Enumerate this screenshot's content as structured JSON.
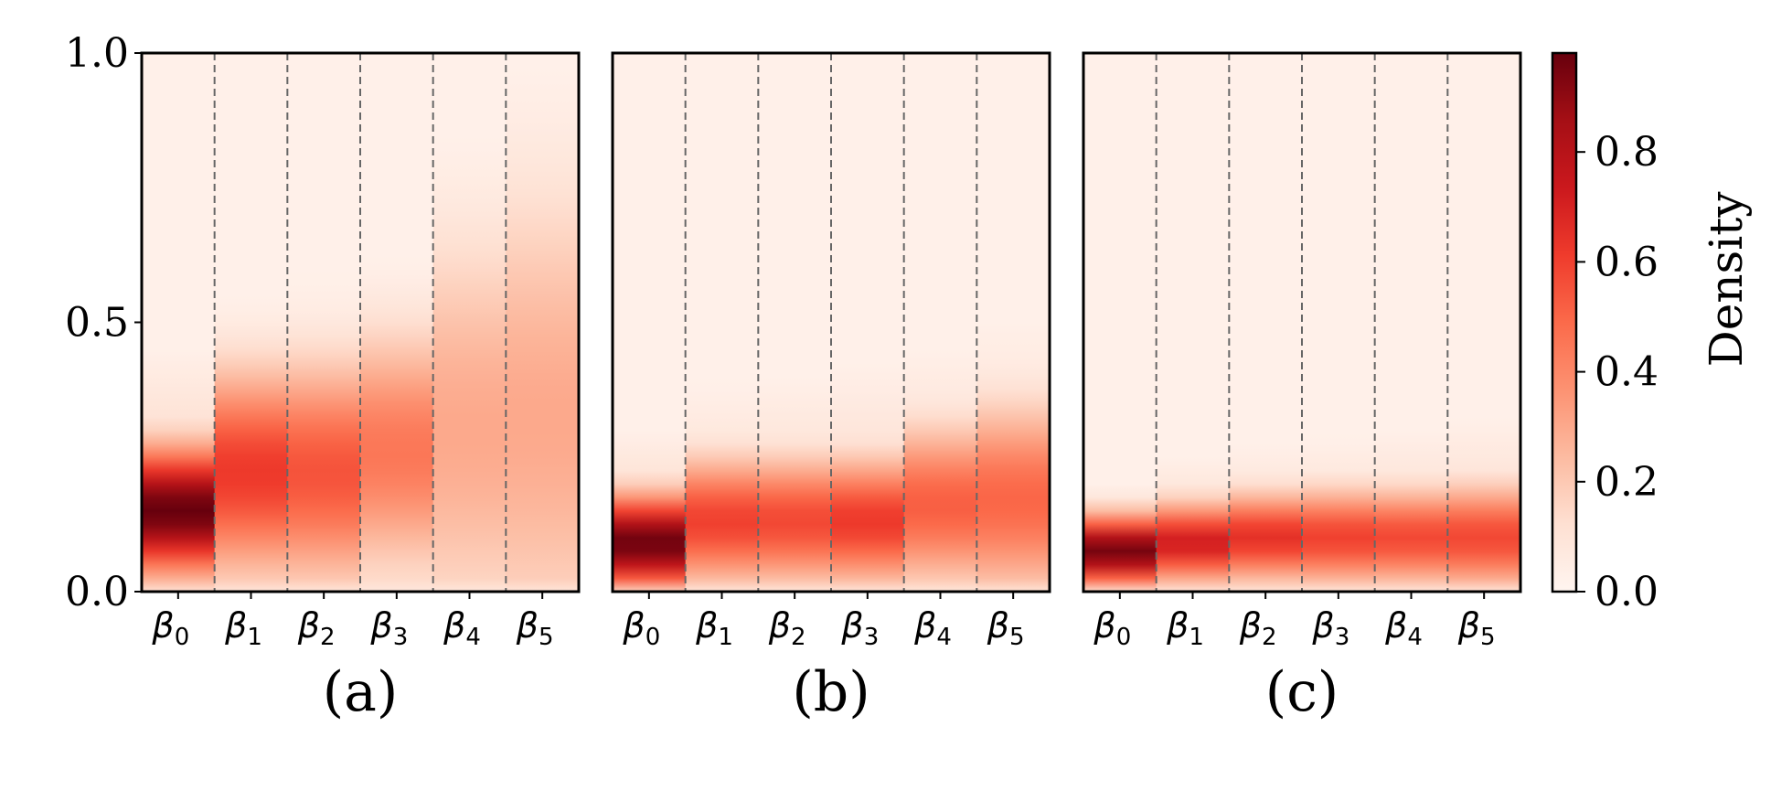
{
  "chart_data": [
    {
      "type": "heatmap",
      "panel_label": "(a)",
      "categories": [
        "β0",
        "β1",
        "β2",
        "β3",
        "β4",
        "β5"
      ],
      "category_base": "β",
      "category_subscripts": [
        "0",
        "1",
        "2",
        "3",
        "4",
        "5"
      ],
      "ylim": [
        0,
        1
      ],
      "yticks": [
        "0.0",
        "0.5",
        "1.0"
      ],
      "columns": [
        {
          "peak_y": 0.15,
          "peak_density": 0.98,
          "spread": 0.08,
          "floor_top": 0.45
        },
        {
          "peak_y": 0.22,
          "peak_density": 0.62,
          "spread": 0.13,
          "floor_top": 0.55
        },
        {
          "peak_y": 0.22,
          "peak_density": 0.55,
          "spread": 0.14,
          "floor_top": 0.58
        },
        {
          "peak_y": 0.26,
          "peak_density": 0.45,
          "spread": 0.15,
          "floor_top": 0.62
        },
        {
          "peak_y": 0.3,
          "peak_density": 0.3,
          "spread": 0.25,
          "floor_top": 0.75
        },
        {
          "peak_y": 0.32,
          "peak_density": 0.3,
          "spread": 0.3,
          "floor_top": 0.85
        }
      ]
    },
    {
      "type": "heatmap",
      "panel_label": "(b)",
      "categories": [
        "β0",
        "β1",
        "β2",
        "β3",
        "β4",
        "β5"
      ],
      "category_base": "β",
      "category_subscripts": [
        "0",
        "1",
        "2",
        "3",
        "4",
        "5"
      ],
      "ylim": [
        0,
        1
      ],
      "columns": [
        {
          "peak_y": 0.09,
          "peak_density": 0.97,
          "spread": 0.06,
          "floor_top": 0.3
        },
        {
          "peak_y": 0.13,
          "peak_density": 0.6,
          "spread": 0.08,
          "floor_top": 0.38
        },
        {
          "peak_y": 0.13,
          "peak_density": 0.58,
          "spread": 0.08,
          "floor_top": 0.4
        },
        {
          "peak_y": 0.13,
          "peak_density": 0.62,
          "spread": 0.08,
          "floor_top": 0.42
        },
        {
          "peak_y": 0.16,
          "peak_density": 0.52,
          "spread": 0.1,
          "floor_top": 0.45
        },
        {
          "peak_y": 0.17,
          "peak_density": 0.5,
          "spread": 0.12,
          "floor_top": 0.5
        }
      ]
    },
    {
      "type": "heatmap",
      "panel_label": "(c)",
      "categories": [
        "β0",
        "β1",
        "β2",
        "β3",
        "β4",
        "β5"
      ],
      "category_base": "β",
      "category_subscripts": [
        "0",
        "1",
        "2",
        "3",
        "4",
        "5"
      ],
      "ylim": [
        0,
        1
      ],
      "columns": [
        {
          "peak_y": 0.075,
          "peak_density": 0.95,
          "spread": 0.045,
          "floor_top": 0.2
        },
        {
          "peak_y": 0.09,
          "peak_density": 0.72,
          "spread": 0.05,
          "floor_top": 0.25
        },
        {
          "peak_y": 0.1,
          "peak_density": 0.65,
          "spread": 0.055,
          "floor_top": 0.27
        },
        {
          "peak_y": 0.1,
          "peak_density": 0.6,
          "spread": 0.06,
          "floor_top": 0.28
        },
        {
          "peak_y": 0.1,
          "peak_density": 0.58,
          "spread": 0.06,
          "floor_top": 0.3
        },
        {
          "peak_y": 0.1,
          "peak_density": 0.58,
          "spread": 0.065,
          "floor_top": 0.32
        }
      ]
    }
  ],
  "colorbar": {
    "label": "Density",
    "ticks": [
      "0.0",
      "0.2",
      "0.4",
      "0.6",
      "0.8"
    ],
    "tick_values": [
      0,
      0.2,
      0.4,
      0.6,
      0.8
    ],
    "range": [
      0,
      0.98
    ],
    "colormap": "Reds",
    "colors": [
      "#fff5f0",
      "#fee0d2",
      "#fcbba1",
      "#fc9272",
      "#fb6a4a",
      "#ef3b2c",
      "#cb181d",
      "#a50f15",
      "#67000d"
    ]
  },
  "styles": {
    "divider_color": "#666666",
    "frame_color": "#000000"
  }
}
